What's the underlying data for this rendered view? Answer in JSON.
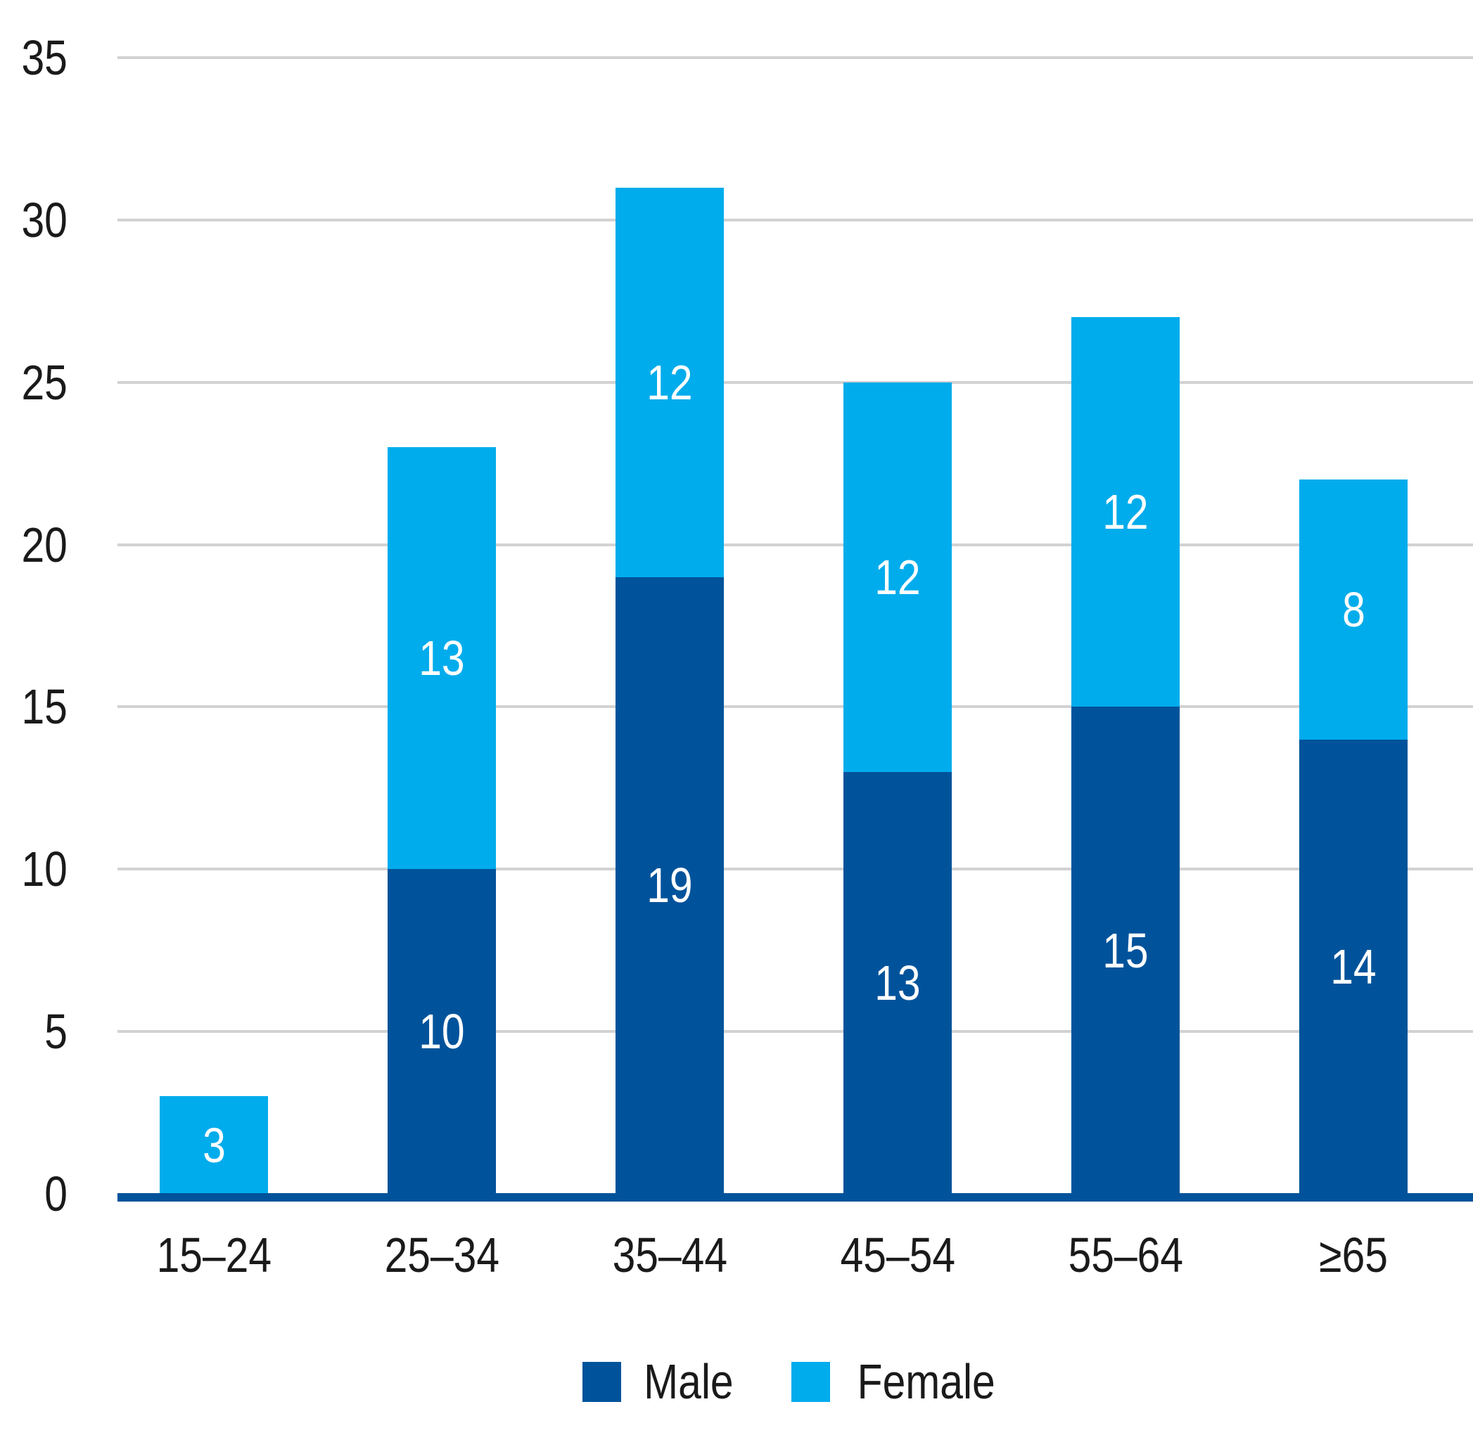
{
  "chart_data": {
    "type": "bar",
    "stacked": true,
    "title": "",
    "xlabel": "",
    "ylabel": "",
    "categories": [
      "15–24",
      "25–34",
      "35–44",
      "45–54",
      "55–64",
      "≥65"
    ],
    "series": [
      {
        "name": "Male",
        "color": "#00539B",
        "values": [
          0,
          10,
          19,
          13,
          15,
          14
        ]
      },
      {
        "name": "Female",
        "color": "#00ACEC",
        "values": [
          3,
          13,
          12,
          12,
          12,
          8
        ]
      }
    ],
    "totals": [
      3,
      23,
      31,
      25,
      27,
      22
    ],
    "yticks": [
      0,
      5,
      10,
      15,
      20,
      25,
      30,
      35
    ],
    "ylim": [
      0,
      35
    ],
    "grid": "horizontal",
    "gridline_color": "#D2D2D2",
    "axis_line_color": "#00539B",
    "tick_label_color": "#1A1A1A",
    "value_label_color": "#FFFFFF",
    "legend_position": "bottom"
  }
}
